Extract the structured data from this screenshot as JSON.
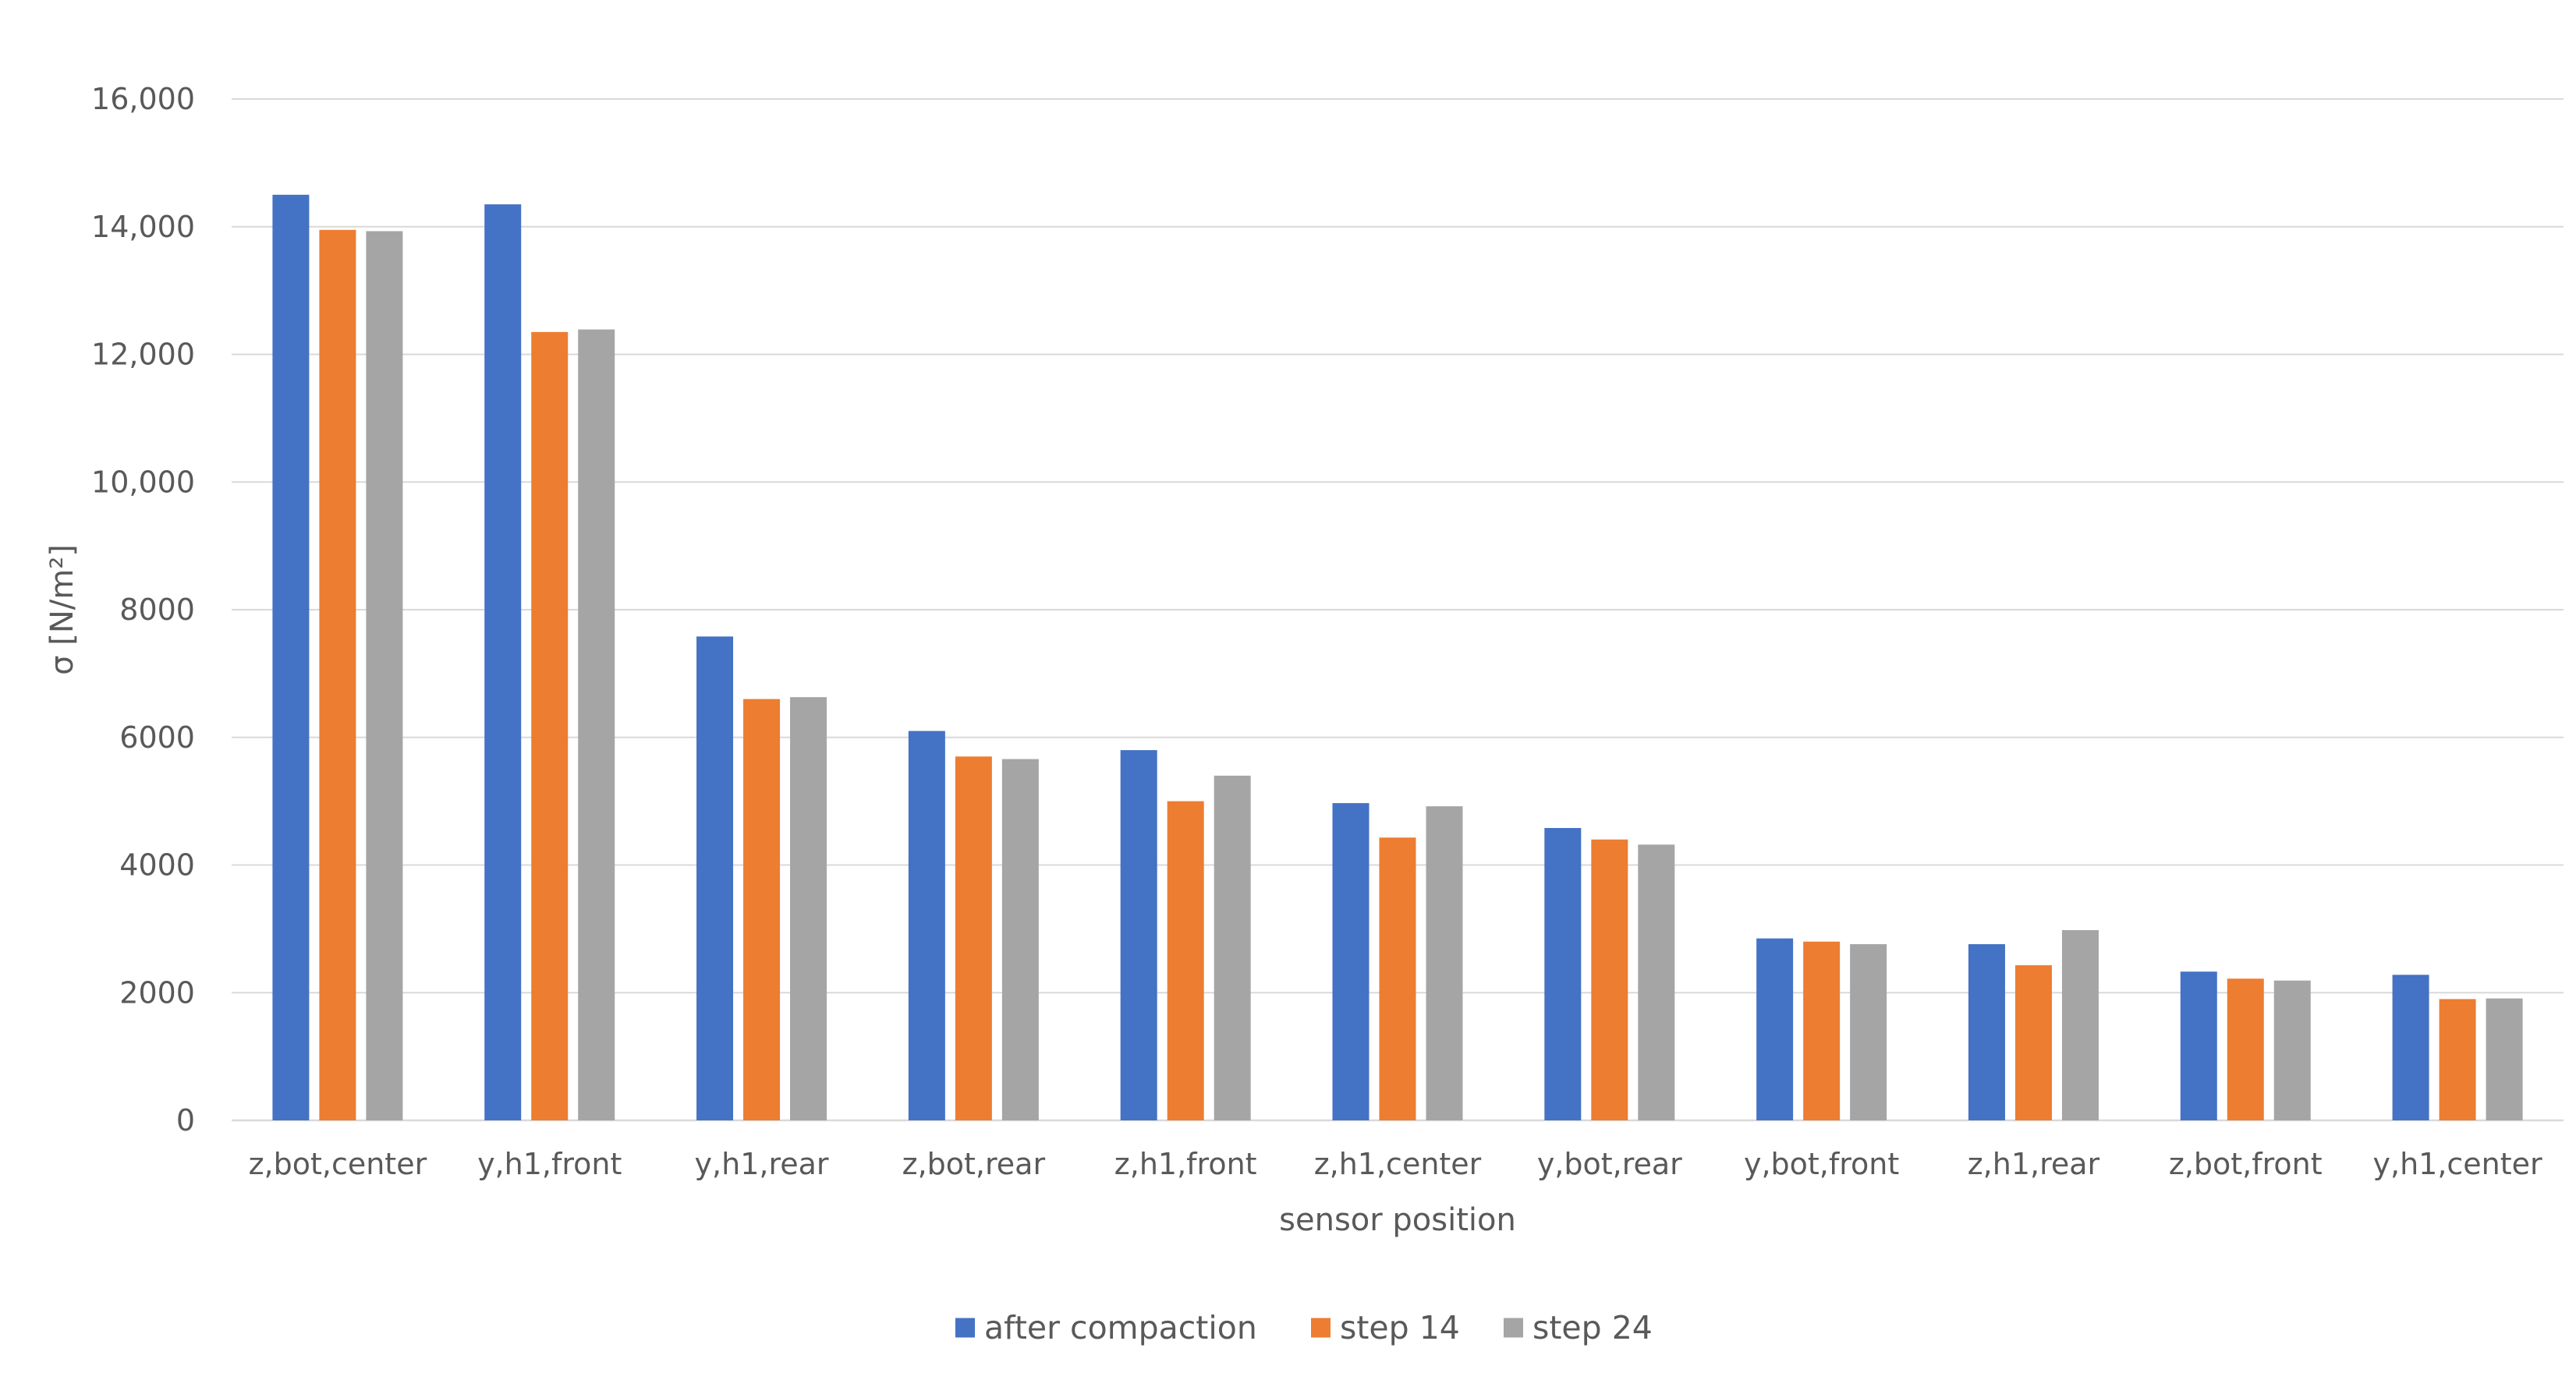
{
  "chart_data": {
    "type": "bar",
    "title": "",
    "xlabel": "sensor position",
    "ylabel": "σ  [N/m²]",
    "ylim": [
      0,
      16000
    ],
    "yticks": [
      {
        "value": 0,
        "label": "0"
      },
      {
        "value": 2000,
        "label": "2000"
      },
      {
        "value": 4000,
        "label": "4000"
      },
      {
        "value": 6000,
        "label": "6000"
      },
      {
        "value": 8000,
        "label": "8000"
      },
      {
        "value": 10000,
        "label": "10,000"
      },
      {
        "value": 12000,
        "label": "12,000"
      },
      {
        "value": 14000,
        "label": "14,000"
      },
      {
        "value": 16000,
        "label": "16,000"
      }
    ],
    "grid": true,
    "legend_position": "bottom",
    "categories": [
      "z,bot,center",
      "y,h1,front",
      "y,h1,rear",
      "z,bot,rear",
      "z,h1,front",
      "z,h1,center",
      "y,bot,rear",
      "y,bot,front",
      "z,h1,rear",
      "z,bot,front",
      "y,h1,center"
    ],
    "series": [
      {
        "name": "after compaction",
        "color": "#4472c4",
        "values": [
          14500,
          14350,
          7580,
          6100,
          5800,
          4970,
          4580,
          2850,
          2760,
          2330,
          2280
        ]
      },
      {
        "name": "step 14",
        "color": "#ed7d31",
        "values": [
          13950,
          12350,
          6600,
          5700,
          5000,
          4430,
          4400,
          2800,
          2430,
          2220,
          1900
        ]
      },
      {
        "name": "step 24",
        "color": "#a5a5a5",
        "values": [
          13930,
          12390,
          6630,
          5660,
          5400,
          4920,
          4320,
          2760,
          2980,
          2190,
          1910
        ]
      }
    ]
  }
}
